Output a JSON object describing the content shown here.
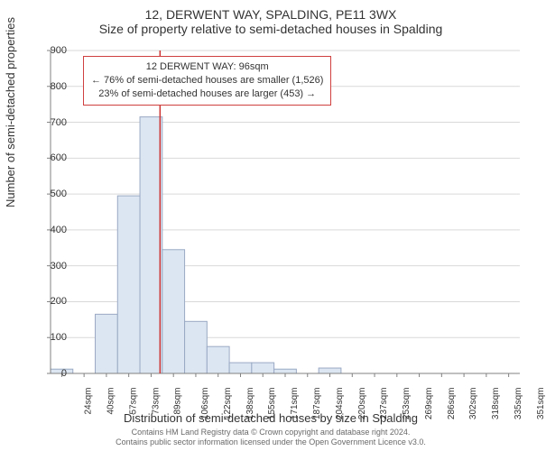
{
  "title": {
    "line1": "12, DERWENT WAY, SPALDING, PE11 3WX",
    "line2": "Size of property relative to semi-detached houses in Spalding"
  },
  "y_axis": {
    "label": "Number of semi-detached properties",
    "min": 0,
    "max": 900,
    "tick_step": 100,
    "ticks": [
      0,
      100,
      200,
      300,
      400,
      500,
      600,
      700,
      800,
      900
    ]
  },
  "x_axis": {
    "label": "Distribution of semi-detached houses by size in Spalding",
    "tick_labels": [
      "24sqm",
      "40sqm",
      "57sqm",
      "73sqm",
      "89sqm",
      "106sqm",
      "122sqm",
      "138sqm",
      "155sqm",
      "171sqm",
      "187sqm",
      "204sqm",
      "220sqm",
      "237sqm",
      "253sqm",
      "269sqm",
      "286sqm",
      "302sqm",
      "318sqm",
      "335sqm",
      "351sqm"
    ]
  },
  "histogram": {
    "type": "histogram",
    "values": [
      12,
      0,
      165,
      495,
      715,
      345,
      145,
      75,
      30,
      30,
      12,
      0,
      15,
      0,
      0,
      0,
      0,
      0,
      0,
      0,
      0
    ],
    "bar_fill": "#dce6f2",
    "bar_stroke": "#9aa9c4",
    "bar_stroke_width": 1
  },
  "reference_line": {
    "x_index": 4.4,
    "color": "#cc3333",
    "width": 1.5
  },
  "annotation": {
    "line1": "12 DERWENT WAY: 96sqm",
    "line2": "← 76% of semi-detached houses are smaller (1,526)",
    "line3": "23% of semi-detached houses are larger (453) →",
    "border_color": "#d04040"
  },
  "styling": {
    "axis_color": "#808080",
    "grid_color": "#d9d9d9",
    "tick_color": "#808080",
    "background": "#ffffff",
    "text_color": "#333333",
    "footer_color": "#696969",
    "tick_fontsize": 11,
    "xtick_fontsize": 10,
    "title_fontsize": 14,
    "label_fontsize": 13
  },
  "footer": {
    "line1": "Contains HM Land Registry data © Crown copyright and database right 2024.",
    "line2": "Contains public sector information licensed under the Open Government Licence v3.0."
  }
}
